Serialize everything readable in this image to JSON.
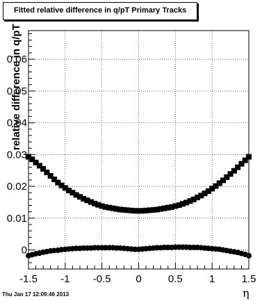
{
  "chart_data": {
    "type": "scatter",
    "title": "Fitted relative difference in q/pT  Primary Tracks",
    "xlabel": "η",
    "ylabel": "relative difference in q/pT",
    "xlim": [
      -1.5,
      1.5
    ],
    "ylim": [
      -0.006,
      0.069
    ],
    "x_ticks": [
      "-1.5",
      "-1",
      "-0.5",
      "0",
      "0.5",
      "1",
      "1.5"
    ],
    "x_tick_values": [
      -1.5,
      -1,
      -0.5,
      0,
      0.5,
      1,
      1.5
    ],
    "y_ticks": [
      "0",
      "0.01",
      "0.02",
      "0.03",
      "0.04",
      "0.05",
      "0.06"
    ],
    "y_tick_values": [
      0,
      0.01,
      0.02,
      0.03,
      0.04,
      0.05,
      0.06
    ],
    "grid": true,
    "series": [
      {
        "marker": "square",
        "x": [
          -1.5,
          -1.45,
          -1.4,
          -1.35,
          -1.3,
          -1.25,
          -1.2,
          -1.15,
          -1.1,
          -1.05,
          -1.0,
          -0.95,
          -0.9,
          -0.85,
          -0.8,
          -0.75,
          -0.7,
          -0.65,
          -0.6,
          -0.55,
          -0.5,
          -0.45,
          -0.4,
          -0.35,
          -0.3,
          -0.25,
          -0.2,
          -0.15,
          -0.1,
          -0.05,
          0.0,
          0.05,
          0.1,
          0.15,
          0.2,
          0.25,
          0.3,
          0.35,
          0.4,
          0.45,
          0.5,
          0.55,
          0.6,
          0.65,
          0.7,
          0.75,
          0.8,
          0.85,
          0.9,
          0.95,
          1.0,
          1.05,
          1.1,
          1.15,
          1.2,
          1.25,
          1.3,
          1.35,
          1.4,
          1.45,
          1.5
        ],
        "y": [
          0.0293,
          0.0285,
          0.0275,
          0.0265,
          0.0255,
          0.0244,
          0.0233,
          0.0222,
          0.0212,
          0.0203,
          0.0195,
          0.0187,
          0.018,
          0.0173,
          0.0167,
          0.0161,
          0.0156,
          0.0151,
          0.0146,
          0.0142,
          0.0138,
          0.0135,
          0.0133,
          0.0131,
          0.0129,
          0.0127,
          0.0126,
          0.0125,
          0.0124,
          0.0123,
          0.0123,
          0.0123,
          0.0124,
          0.0125,
          0.0126,
          0.0127,
          0.0129,
          0.0131,
          0.0133,
          0.0135,
          0.0138,
          0.0141,
          0.0145,
          0.0149,
          0.0154,
          0.0159,
          0.0165,
          0.0171,
          0.0178,
          0.0185,
          0.0193,
          0.0201,
          0.021,
          0.0219,
          0.0229,
          0.0239,
          0.0249,
          0.026,
          0.0271,
          0.0282,
          0.0293
        ]
      },
      {
        "marker": "circle",
        "x": [
          -1.5,
          -1.45,
          -1.4,
          -1.35,
          -1.3,
          -1.25,
          -1.2,
          -1.15,
          -1.1,
          -1.05,
          -1.0,
          -0.95,
          -0.9,
          -0.85,
          -0.8,
          -0.75,
          -0.7,
          -0.65,
          -0.6,
          -0.55,
          -0.5,
          -0.45,
          -0.4,
          -0.35,
          -0.3,
          -0.25,
          -0.2,
          -0.15,
          -0.1,
          -0.05,
          0.0,
          0.05,
          0.1,
          0.15,
          0.2,
          0.25,
          0.3,
          0.35,
          0.4,
          0.45,
          0.5,
          0.55,
          0.6,
          0.65,
          0.7,
          0.75,
          0.8,
          0.85,
          0.9,
          0.95,
          1.0,
          1.05,
          1.1,
          1.15,
          1.2,
          1.25,
          1.3,
          1.35,
          1.4,
          1.45,
          1.5
        ],
        "y": [
          -0.0018,
          -0.0015,
          -0.0012,
          -0.001,
          -0.0007,
          -0.0005,
          -0.0003,
          -0.0002,
          -0.0001,
          0.0001,
          0.0002,
          0.0003,
          0.0004,
          0.0005,
          0.0005,
          0.0006,
          0.0006,
          0.0006,
          0.0007,
          0.0007,
          0.0007,
          0.0007,
          0.0007,
          0.0007,
          0.0006,
          0.0006,
          0.0005,
          0.0004,
          0.0003,
          0.0002,
          0.0002,
          0.0003,
          0.0004,
          0.0005,
          0.0006,
          0.0007,
          0.0007,
          0.0008,
          0.0008,
          0.0008,
          0.0009,
          0.0009,
          0.0009,
          0.0009,
          0.0008,
          0.0008,
          0.0008,
          0.0007,
          0.0006,
          0.0005,
          0.0004,
          0.0003,
          0.0002,
          0.0,
          -0.0002,
          -0.0004,
          -0.0006,
          -0.0008,
          -0.0011,
          -0.0014,
          -0.0018
        ]
      }
    ]
  },
  "timestamp": "Thu Jan 17 12:09:46 2013"
}
